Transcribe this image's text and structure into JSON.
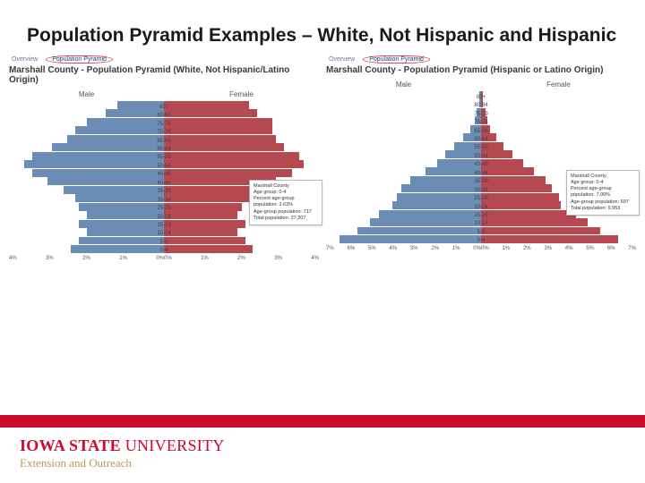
{
  "title": "Population Pyramid Examples – White, Not Hispanic and Hispanic",
  "age_labels": [
    "85+",
    "80-84",
    "75-79",
    "70-74",
    "65-69",
    "60-64",
    "55-59",
    "50-54",
    "45-49",
    "40-44",
    "35-39",
    "30-34",
    "25-29",
    "20-24",
    "15-19",
    "10-14",
    "5-9",
    "0-4"
  ],
  "left_chart": {
    "tab_overview": "Overview",
    "tab_pyramid": "Population Pyramid",
    "title": "Marshall County - Population Pyramid (White, Not Hispanic/Latino Origin)",
    "male_label": "Male",
    "female_label": "Female",
    "male_color": "#6a8cb5",
    "female_color": "#b5494f",
    "male_pct": [
      1.2,
      1.5,
      2.0,
      2.3,
      2.5,
      2.9,
      3.4,
      3.6,
      3.4,
      3.0,
      2.6,
      2.3,
      2.2,
      2.0,
      2.2,
      2.0,
      2.2,
      2.4
    ],
    "female_pct": [
      2.2,
      2.4,
      2.8,
      2.8,
      2.9,
      3.1,
      3.5,
      3.6,
      3.3,
      2.9,
      2.5,
      2.2,
      2.0,
      1.9,
      2.1,
      1.9,
      2.1,
      2.3
    ],
    "x_max": 4,
    "x_ticks_left": [
      "4%",
      "3%",
      "2%",
      "1%",
      "0%"
    ],
    "x_ticks_right": [
      "0%",
      "1%",
      "2%",
      "3%",
      "4%"
    ],
    "tooltip": {
      "l1": "Marshall County",
      "l2": "Age group: 0-4",
      "l3": "Percent age-group population: 2.63%",
      "l4": "Age-group population: 717",
      "l5": "Total population: 27,207"
    }
  },
  "right_chart": {
    "tab_overview": "Overview",
    "tab_pyramid": "Population Pyramid",
    "title": "Marshall County - Population Pyramid (Hispanic or Latino Origin)",
    "male_label": "Male",
    "female_label": "Female",
    "male_color": "#6a8cb5",
    "female_color": "#b5494f",
    "male_pct": [
      0.1,
      0.1,
      0.2,
      0.3,
      0.5,
      0.8,
      1.2,
      1.6,
      2.0,
      2.5,
      3.2,
      3.6,
      3.8,
      4.0,
      4.6,
      5.0,
      5.6,
      6.4
    ],
    "female_pct": [
      0.1,
      0.1,
      0.2,
      0.3,
      0.4,
      0.7,
      1.0,
      1.4,
      1.9,
      2.4,
      2.9,
      3.2,
      3.5,
      3.6,
      4.3,
      4.8,
      5.4,
      6.2
    ],
    "x_max": 7,
    "x_ticks_left": [
      "7%",
      "6%",
      "5%",
      "4%",
      "3%",
      "2%",
      "1%",
      "0%"
    ],
    "x_ticks_right": [
      "0%",
      "1%",
      "2%",
      "3%",
      "4%",
      "5%",
      "6%",
      "7%"
    ],
    "tooltip": {
      "l1": "Marshall County",
      "l2": "Age group: 0-4",
      "l3": "Percent age-group population: 7.00%",
      "l4": "Age-group population: 697",
      "l5": "Total population: 9,953"
    }
  },
  "footer": {
    "isu_bold": "IOWA STATE ",
    "isu_rest": "UNIVERSITY",
    "sub": "Extension and Outreach",
    "red": "#cc0a2e",
    "gold": "#b39a5a"
  }
}
